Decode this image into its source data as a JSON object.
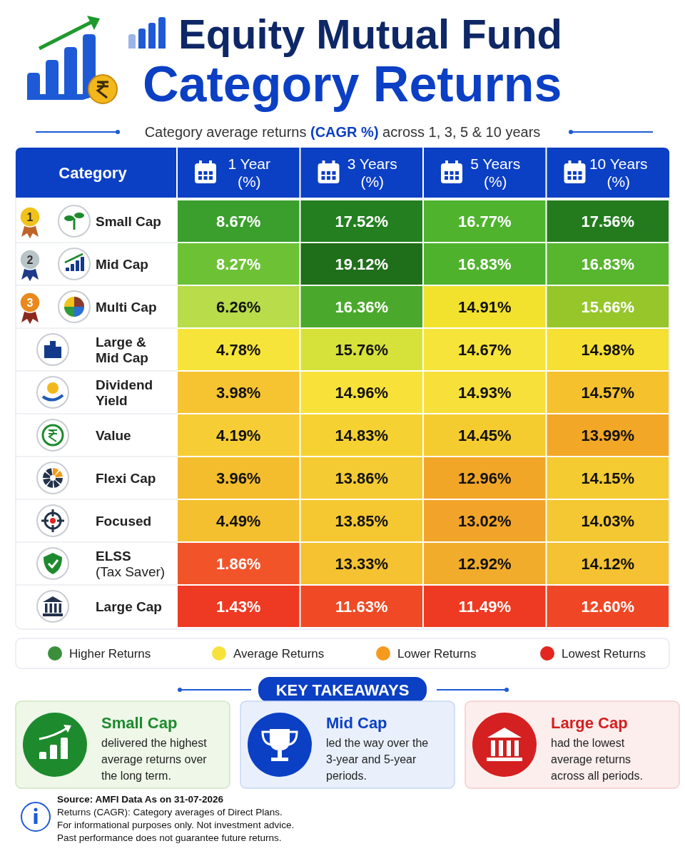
{
  "chart_data": {
    "type": "heatmap",
    "title": "Equity Mutual Fund Category Returns",
    "subtitle": "Category average returns (CAGR %) across 1, 3, 5 & 10 years",
    "ylabel": "Category",
    "categories": [
      "1 Year (%)",
      "3 Years (%)",
      "5 Years (%)",
      "10 Years (%)"
    ],
    "y_categories": [
      "Small Cap",
      "Mid Cap",
      "Multi Cap",
      "Large & Mid Cap",
      "Dividend Yield",
      "Value",
      "Flexi Cap",
      "Focused",
      "ELSS (Tax Saver)",
      "Large Cap"
    ],
    "cells": [
      [
        8.67,
        17.52,
        16.77,
        17.56
      ],
      [
        8.27,
        19.12,
        16.83,
        16.83
      ],
      [
        6.26,
        16.36,
        14.91,
        15.66
      ],
      [
        4.78,
        15.76,
        14.67,
        14.98
      ],
      [
        3.98,
        14.96,
        14.93,
        14.57
      ],
      [
        4.19,
        14.83,
        14.45,
        13.99
      ],
      [
        3.96,
        13.86,
        12.96,
        14.15
      ],
      [
        4.49,
        13.85,
        13.02,
        14.03
      ],
      [
        1.86,
        13.33,
        12.92,
        14.12
      ],
      [
        1.43,
        11.63,
        11.49,
        12.6
      ]
    ],
    "cell_labels": [
      [
        "8.67%",
        "17.52%",
        "16.77%",
        "17.56%"
      ],
      [
        "8.27%",
        "19.12%",
        "16.83%",
        "16.83%"
      ],
      [
        "6.26%",
        "16.36%",
        "14.91%",
        "15.66%"
      ],
      [
        "4.78%",
        "15.76%",
        "14.67%",
        "14.98%"
      ],
      [
        "3.98%",
        "14.96%",
        "14.93%",
        "14.57%"
      ],
      [
        "4.19%",
        "14.83%",
        "14.45%",
        "13.99%"
      ],
      [
        "3.96%",
        "13.86%",
        "12.96%",
        "14.15%"
      ],
      [
        "4.49%",
        "13.85%",
        "13.02%",
        "14.03%"
      ],
      [
        "1.86%",
        "13.33%",
        "12.92%",
        "14.12%"
      ],
      [
        "1.43%",
        "11.63%",
        "11.49%",
        "12.60%"
      ]
    ],
    "colors": [
      [
        "#3a9f2c",
        "#237f20",
        "#4fb32e",
        "#237b1e"
      ],
      [
        "#6cc234",
        "#1f6e1a",
        "#4fb22d",
        "#57b52e"
      ],
      [
        "#b8dc4a",
        "#4aa92c",
        "#f2e22e",
        "#96c62a"
      ],
      [
        "#f7e43a",
        "#d6e23a",
        "#f7e43a",
        "#f5e033"
      ],
      [
        "#f6c431",
        "#f8e23a",
        "#f8e03a",
        "#f5c22e"
      ],
      [
        "#f6cd34",
        "#f5d232",
        "#f5cc30",
        "#f2a726"
      ],
      [
        "#f3bd2e",
        "#f5cb34",
        "#f2a628",
        "#f5cb32"
      ],
      [
        "#f4c030",
        "#f5c832",
        "#f2a42a",
        "#f4c832"
      ],
      [
        "#f2542a",
        "#f5c232",
        "#f2ac2c",
        "#f4c232"
      ],
      [
        "#ee3a22",
        "#ef4a25",
        "#ee3a22",
        "#ef4725"
      ]
    ],
    "annotations": [
      "1",
      "2",
      "3",
      "Higher Returns",
      "Average Returns",
      "Lower Returns",
      "Lowest Returns",
      "KEY TAKEAWAYS",
      "Small Cap",
      "delivered the highest average returns over the long term.",
      "Mid Cap",
      "led the way over the 3-year and 5-year periods.",
      "Large Cap",
      "had the lowest average returns across all periods.",
      "Source: AMFI Data As on 31-07-2026",
      "Returns (CAGR): Category averages of Direct Plans.",
      "For informational purposes only. Not investment advice.",
      "Past performance does not guarantee future returns."
    ]
  }
}
